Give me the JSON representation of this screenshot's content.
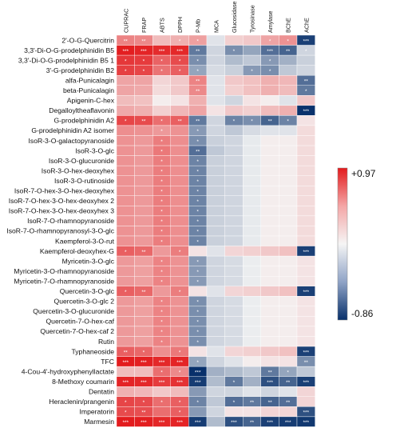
{
  "chart_data": {
    "type": "heatmap",
    "columns": [
      "CUPRAC",
      "FRAP",
      "ABTS",
      "DPPH",
      "P-Mb",
      "MCA",
      "Glucosidase",
      "Tyrosinase",
      "Amylase",
      "BChE",
      "AChE"
    ],
    "rows": [
      "2'-O-G-Quercitrin",
      "3,3'-Di-O-G-prodelphinidin B5",
      "3,3'-Di-O-G-prodelphinidin B5 1",
      "3'-G-prodelphinidin B2",
      "alfa-Punicalagin",
      "beta-Punicalagin",
      "Apigenin-C-hex",
      "Degalloyltheaflavonin",
      "G-prodelphinidin A2",
      "G-prodelphinidin A2 isomer",
      "IsoR-3-O-galactopyranoside",
      "IsoR-3-O-glc",
      "IsoR-3-O-glucuronide",
      "IsoR-3-O-hex-deoxyhex",
      "IsoR-3-O-rutinoside",
      "IsoR-7-O-hex-3-O-hex-deoxyhex",
      "IsoR-7-O-hex-3-O-hex-deoxyhex 2",
      "IsoR-7-O-hex-3-O-hex-deoxyhex 3",
      "IsoR-7-O-rhamnopyranoside",
      "IsoR-7-O-rhamnopyranosyl-3-O-glc",
      "Kaempferol-3-O-rut",
      "Kaempferol-deoxyhex-G",
      "Myricetin-3-O-glc",
      "Myricetin-3-O-rhamnopyranoside",
      "Myricetin-7-O-rhamnopyranoside",
      "Quercetin-3-O-glc",
      "Quercetin-3-O-glc 2",
      "Quercetin-3-O-glucuronide",
      "Quercetin-7-O-hex-caf",
      "Quercetin-7-O-hex-caf 2",
      "Rutin",
      "Typhaneoside",
      "TFC",
      "4-Cou-4'-hydroxyphenyllactate",
      "8-Methoxy coumarin",
      "Dentatin",
      "Heraclenin/prangenin",
      "Imperatorin",
      "Marmesin"
    ],
    "values": [
      [
        0.45,
        0.42,
        0.2,
        0.25,
        0.32,
        -0.05,
        0.12,
        0.15,
        0.3,
        0.38,
        -0.78
      ],
      [
        0.95,
        0.92,
        0.88,
        0.9,
        -0.5,
        -0.1,
        -0.4,
        -0.3,
        -0.55,
        -0.6,
        -0.1
      ],
      [
        0.82,
        0.8,
        0.6,
        0.72,
        -0.4,
        -0.1,
        -0.2,
        -0.15,
        -0.35,
        -0.25,
        -0.12
      ],
      [
        0.78,
        0.75,
        0.52,
        0.62,
        -0.3,
        -0.08,
        -0.12,
        -0.35,
        -0.4,
        -0.15,
        -0.1
      ],
      [
        0.3,
        0.3,
        0.1,
        0.15,
        0.45,
        -0.05,
        0.15,
        0.18,
        0.25,
        0.22,
        -0.55
      ],
      [
        0.3,
        0.28,
        0.08,
        0.15,
        0.42,
        -0.05,
        0.12,
        0.18,
        0.25,
        0.2,
        -0.5
      ],
      [
        0.2,
        0.18,
        0.02,
        0.05,
        0.25,
        -0.05,
        -0.1,
        0.05,
        0.02,
        -0.05,
        0.15
      ],
      [
        0.28,
        0.25,
        0.12,
        0.22,
        0.3,
        0.05,
        0.15,
        0.12,
        0.2,
        0.25,
        -0.85
      ],
      [
        0.75,
        0.72,
        0.55,
        0.62,
        -0.5,
        -0.1,
        -0.45,
        -0.4,
        -0.6,
        -0.45,
        0.05
      ],
      [
        0.4,
        0.38,
        0.35,
        0.38,
        -0.35,
        -0.1,
        -0.15,
        -0.08,
        -0.05,
        -0.05,
        0.08
      ],
      [
        0.38,
        0.35,
        0.48,
        0.4,
        -0.4,
        -0.12,
        -0.1,
        -0.03,
        0.02,
        0.02,
        0.08
      ],
      [
        0.38,
        0.35,
        0.5,
        0.4,
        -0.55,
        -0.15,
        -0.1,
        -0.03,
        0.02,
        0.02,
        0.08
      ],
      [
        0.38,
        0.35,
        0.48,
        0.4,
        -0.45,
        -0.12,
        -0.1,
        -0.03,
        0.02,
        0.02,
        0.08
      ],
      [
        0.38,
        0.35,
        0.48,
        0.4,
        -0.45,
        -0.12,
        -0.1,
        -0.03,
        0.02,
        0.02,
        0.08
      ],
      [
        0.38,
        0.35,
        0.48,
        0.4,
        -0.45,
        -0.12,
        -0.1,
        -0.03,
        0.02,
        0.02,
        0.08
      ],
      [
        0.38,
        0.35,
        0.48,
        0.4,
        -0.45,
        -0.12,
        -0.1,
        -0.03,
        0.02,
        0.02,
        0.08
      ],
      [
        0.38,
        0.35,
        0.48,
        0.4,
        -0.45,
        -0.12,
        -0.1,
        -0.03,
        0.02,
        0.02,
        0.08
      ],
      [
        0.38,
        0.35,
        0.48,
        0.4,
        -0.45,
        -0.12,
        -0.1,
        -0.03,
        0.02,
        0.02,
        0.08
      ],
      [
        0.38,
        0.35,
        0.48,
        0.4,
        -0.45,
        -0.12,
        -0.1,
        -0.03,
        0.02,
        0.02,
        0.08
      ],
      [
        0.38,
        0.35,
        0.48,
        0.4,
        -0.45,
        -0.12,
        -0.1,
        -0.03,
        0.02,
        0.02,
        0.08
      ],
      [
        0.38,
        0.35,
        0.48,
        0.4,
        -0.45,
        -0.12,
        -0.1,
        -0.03,
        0.02,
        0.02,
        0.08
      ],
      [
        0.62,
        0.58,
        0.35,
        0.48,
        0.05,
        -0.05,
        0.1,
        0.12,
        0.15,
        0.18,
        -0.78
      ],
      [
        0.35,
        0.32,
        0.45,
        0.38,
        -0.35,
        -0.1,
        -0.08,
        -0.02,
        0.02,
        0.02,
        0.05
      ],
      [
        0.35,
        0.32,
        0.45,
        0.38,
        -0.35,
        -0.1,
        -0.08,
        -0.02,
        0.02,
        0.02,
        0.05
      ],
      [
        0.35,
        0.32,
        0.45,
        0.38,
        -0.35,
        -0.1,
        -0.08,
        -0.02,
        0.02,
        0.02,
        0.05
      ],
      [
        0.62,
        0.58,
        0.35,
        0.48,
        0.05,
        -0.05,
        0.1,
        0.12,
        0.15,
        0.18,
        -0.78
      ],
      [
        0.35,
        0.32,
        0.45,
        0.38,
        -0.4,
        -0.1,
        -0.08,
        -0.02,
        0.02,
        0.02,
        0.05
      ],
      [
        0.35,
        0.32,
        0.45,
        0.38,
        -0.4,
        -0.1,
        -0.08,
        -0.02,
        0.02,
        0.02,
        0.05
      ],
      [
        0.35,
        0.32,
        0.45,
        0.38,
        -0.4,
        -0.1,
        -0.08,
        -0.02,
        0.02,
        0.02,
        0.05
      ],
      [
        0.35,
        0.32,
        0.45,
        0.38,
        -0.4,
        -0.1,
        -0.08,
        -0.02,
        0.02,
        0.02,
        0.05
      ],
      [
        0.35,
        0.32,
        0.45,
        0.38,
        -0.4,
        -0.1,
        -0.08,
        -0.02,
        0.02,
        0.02,
        0.05
      ],
      [
        0.62,
        0.58,
        0.4,
        0.5,
        0.05,
        -0.05,
        0.1,
        0.12,
        0.15,
        0.18,
        -0.78
      ],
      [
        0.96,
        0.94,
        0.9,
        0.92,
        -0.3,
        -0.1,
        -0.05,
        0.02,
        0.05,
        0.05,
        -0.4
      ],
      [
        0.2,
        0.2,
        0.55,
        0.42,
        -0.86,
        -0.25,
        -0.2,
        -0.15,
        -0.5,
        -0.3,
        -0.15
      ],
      [
        0.92,
        0.9,
        0.8,
        0.85,
        -0.8,
        -0.2,
        -0.5,
        -0.25,
        -0.7,
        -0.6,
        -0.78
      ],
      [
        0.25,
        0.22,
        0.15,
        0.2,
        -0.35,
        -0.1,
        -0.1,
        -0.05,
        -0.1,
        -0.05,
        0.1
      ],
      [
        0.75,
        0.72,
        0.55,
        0.62,
        -0.45,
        -0.15,
        -0.55,
        -0.5,
        -0.6,
        -0.55,
        0.1
      ],
      [
        0.72,
        0.7,
        0.55,
        0.62,
        -0.35,
        -0.1,
        0.05,
        0.05,
        0.1,
        0.1,
        -0.7
      ],
      [
        0.96,
        0.95,
        0.9,
        0.92,
        -0.8,
        -0.2,
        -0.7,
        -0.6,
        -0.78,
        -0.8,
        -0.82
      ]
    ],
    "stars": [
      [
        "**",
        "**",
        "",
        "*",
        "*",
        "",
        "",
        "",
        "*",
        "*",
        "***"
      ],
      [
        "***",
        "***",
        "***",
        "***",
        "**",
        "",
        "*",
        "",
        "***",
        "**",
        "*"
      ],
      [
        "*",
        "*",
        "*",
        "*",
        "*",
        "",
        "",
        "",
        "*",
        "",
        ""
      ],
      [
        "*",
        "*",
        "*",
        "*",
        "*",
        "",
        "",
        "*",
        "*",
        "",
        ""
      ],
      [
        "",
        "",
        "",
        "",
        "**",
        "",
        "",
        "",
        "",
        "",
        "**"
      ],
      [
        "",
        "",
        "",
        "",
        "**",
        "",
        "",
        "",
        "",
        "",
        "*"
      ],
      [
        "",
        "",
        "",
        "",
        "",
        "",
        "",
        "",
        "",
        "",
        ""
      ],
      [
        "",
        "",
        "",
        "",
        "",
        "",
        "",
        "",
        "",
        "",
        "***"
      ],
      [
        "*",
        "**",
        "*",
        "**",
        "**",
        "",
        "*",
        "*",
        "**",
        "*",
        ""
      ],
      [
        "",
        "",
        "*",
        "",
        "*",
        "",
        "",
        "",
        "",
        "",
        ""
      ],
      [
        "",
        "",
        "*",
        "",
        "*",
        "",
        "",
        "",
        "",
        "",
        ""
      ],
      [
        "",
        "",
        "*",
        "",
        "**",
        "",
        "",
        "",
        "",
        "",
        ""
      ],
      [
        "",
        "",
        "*",
        "",
        "*",
        "",
        "",
        "",
        "",
        "",
        ""
      ],
      [
        "",
        "",
        "*",
        "",
        "*",
        "",
        "",
        "",
        "",
        "",
        ""
      ],
      [
        "",
        "",
        "*",
        "",
        "*",
        "",
        "",
        "",
        "",
        "",
        ""
      ],
      [
        "",
        "",
        "*",
        "",
        "*",
        "",
        "",
        "",
        "",
        "",
        ""
      ],
      [
        "",
        "",
        "*",
        "",
        "*",
        "",
        "",
        "",
        "",
        "",
        ""
      ],
      [
        "",
        "",
        "*",
        "",
        "*",
        "",
        "",
        "",
        "",
        "",
        ""
      ],
      [
        "",
        "",
        "*",
        "",
        "*",
        "",
        "",
        "",
        "",
        "",
        ""
      ],
      [
        "",
        "",
        "*",
        "",
        "*",
        "",
        "",
        "",
        "",
        "",
        ""
      ],
      [
        "",
        "",
        "*",
        "",
        "*",
        "",
        "",
        "",
        "",
        "",
        ""
      ],
      [
        "*",
        "**",
        "",
        "*",
        "",
        "",
        "",
        "",
        "",
        "",
        "***"
      ],
      [
        "",
        "",
        "*",
        "",
        "*",
        "",
        "",
        "",
        "",
        "",
        ""
      ],
      [
        "",
        "",
        "*",
        "",
        "*",
        "",
        "",
        "",
        "",
        "",
        ""
      ],
      [
        "",
        "",
        "*",
        "",
        "*",
        "",
        "",
        "",
        "",
        "",
        ""
      ],
      [
        "*",
        "**",
        "",
        "*",
        "",
        "",
        "",
        "",
        "",
        "",
        "***"
      ],
      [
        "",
        "",
        "*",
        "",
        "*",
        "",
        "",
        "",
        "",
        "",
        ""
      ],
      [
        "",
        "",
        "*",
        "",
        "*",
        "",
        "",
        "",
        "",
        "",
        ""
      ],
      [
        "",
        "",
        "*",
        "",
        "*",
        "",
        "",
        "",
        "",
        "",
        ""
      ],
      [
        "",
        "",
        "*",
        "",
        "*",
        "",
        "",
        "",
        "",
        "",
        ""
      ],
      [
        "",
        "",
        "*",
        "",
        "*",
        "",
        "",
        "",
        "",
        "",
        ""
      ],
      [
        "**",
        "*",
        "",
        "*",
        "",
        "",
        "",
        "",
        "",
        "",
        "***"
      ],
      [
        "***",
        "***",
        "***",
        "***",
        "*",
        "",
        "",
        "",
        "",
        "",
        "**"
      ],
      [
        "",
        "",
        "*",
        "*",
        "***",
        "",
        "",
        "",
        "**",
        "*",
        ""
      ],
      [
        "***",
        "***",
        "***",
        "***",
        "***",
        "",
        "*",
        "",
        "***",
        "**",
        "***"
      ],
      [
        "",
        "",
        "",
        "",
        "",
        "",
        "",
        "",
        "",
        "",
        ""
      ],
      [
        "*",
        "*",
        "*",
        "*",
        "*",
        "",
        "*",
        "**",
        "**",
        "**",
        ""
      ],
      [
        "*",
        "**",
        "",
        "*",
        "",
        "",
        "",
        "",
        "",
        "",
        "***"
      ],
      [
        "***",
        "***",
        "***",
        "***",
        "***",
        "",
        "***",
        "**",
        "***",
        "***",
        "***"
      ]
    ],
    "vmin": -0.86,
    "vmax": 0.97,
    "colorbar": {
      "max_label": "+0.97",
      "min_label": "-0.86"
    },
    "colors": {
      "high": "#e31a1c",
      "mid": "#f5f5f5",
      "low": "#08306b"
    }
  }
}
